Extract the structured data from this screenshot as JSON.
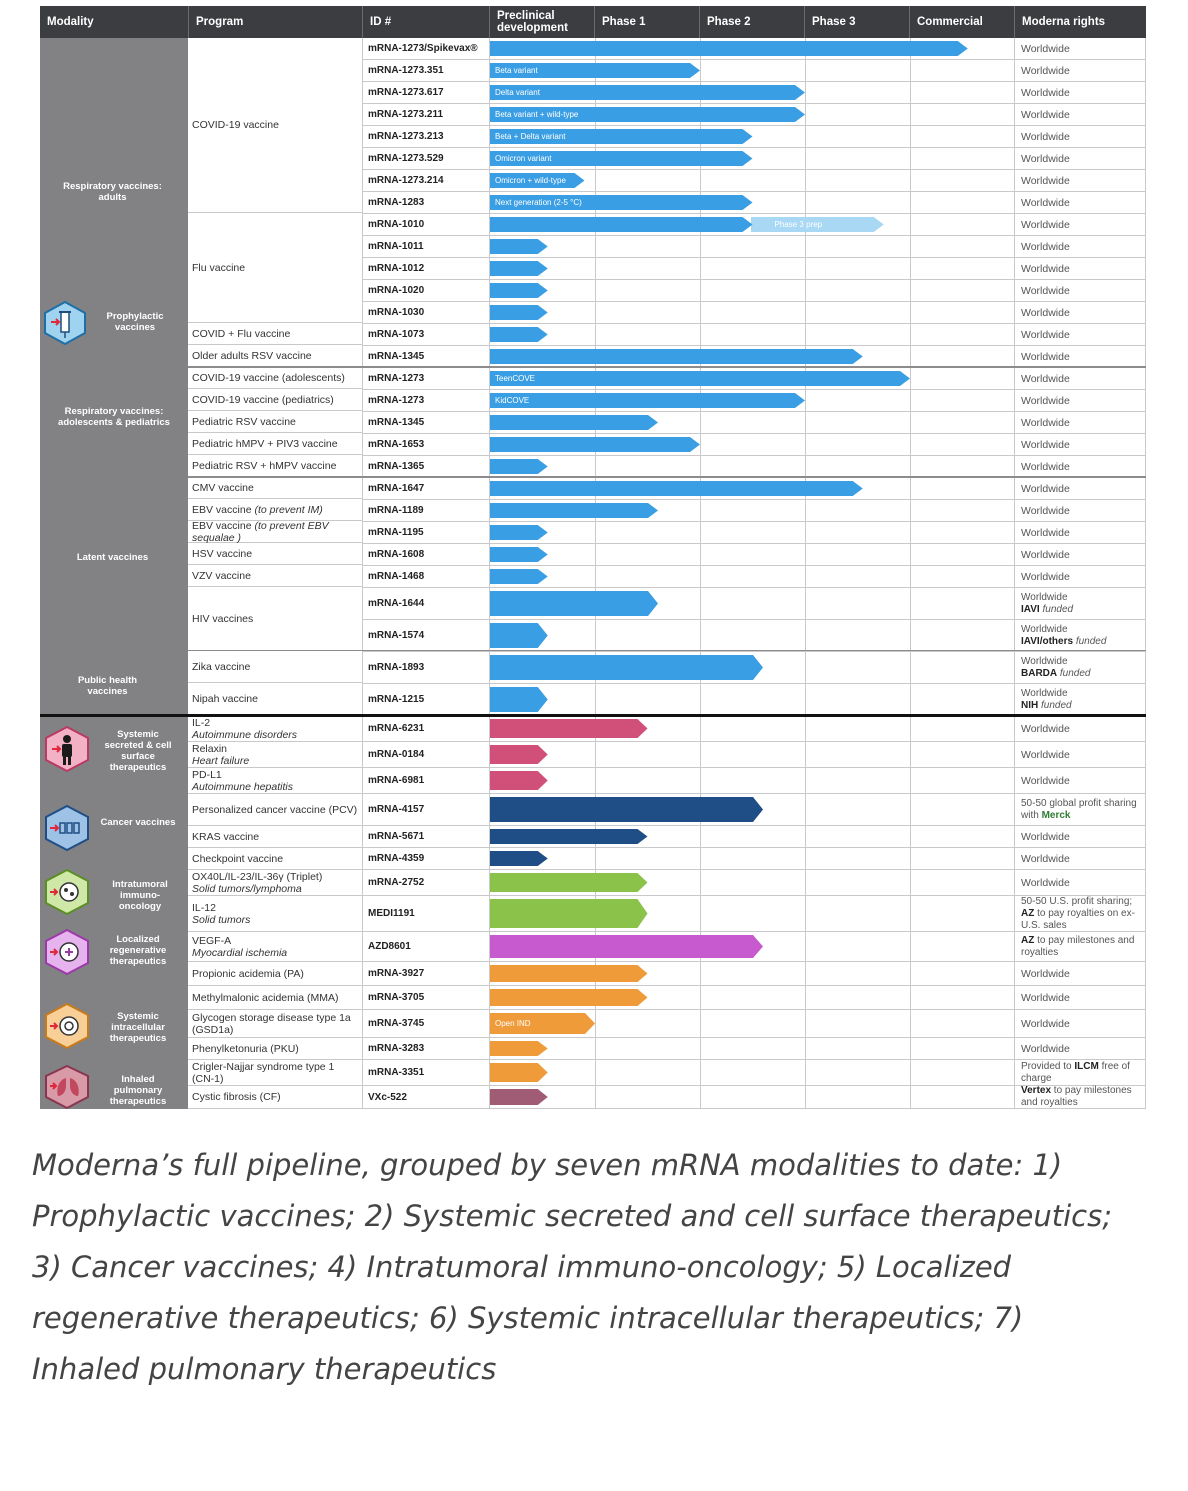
{
  "headers": {
    "modality": "Modality",
    "program": "Program",
    "id": "ID #",
    "preclinical": "Preclinical development",
    "phase1": "Phase 1",
    "phase2": "Phase 2",
    "phase3": "Phase 3",
    "commercial": "Commercial",
    "rights": "Moderna rights"
  },
  "modalities": {
    "resp_adults": "Respiratory vaccines: adults",
    "prophylactic": "Prophylactic vaccines",
    "resp_peds": "Respiratory vaccines: adolescents & pediatrics",
    "latent": "Latent vaccines",
    "public_health": "Public health vaccines",
    "systemic_secreted": "Systemic secreted & cell surface therapeutics",
    "cancer": "Cancer vaccines",
    "intratumoral": "Intratumoral immuno-oncology",
    "localized": "Localized regenerative therapeutics",
    "intracellular": "Systemic intracellular therapeutics",
    "inhaled": "Inhaled pulmonary therapeutics"
  },
  "programs": {
    "covid": "COVID-19 vaccine",
    "flu": "Flu vaccine",
    "covid_flu": "COVID + Flu vaccine",
    "rsv_older": "Older adults RSV vaccine",
    "covid_adol": "COVID-19 vaccine (adolescents)",
    "covid_peds": "COVID-19 vaccine (pediatrics)",
    "rsv_peds": "Pediatric RSV vaccine",
    "hmpv": "Pediatric hMPV + PIV3 vaccine",
    "rsv_hmpv": "Pediatric RSV + hMPV vaccine",
    "cmv": "CMV vaccine",
    "ebv_im_a": "EBV vaccine ",
    "ebv_im_b": "(to prevent IM)",
    "ebv_seq_a": "EBV vaccine ",
    "ebv_seq_b": "(to prevent EBV sequalae )",
    "hsv": "HSV vaccine",
    "vzv": "VZV vaccine",
    "hiv": "HIV vaccines",
    "zika": "Zika vaccine",
    "nipah": "Nipah vaccine",
    "il2": "IL-2",
    "il2_sub": "Autoimmune disorders",
    "relaxin": "Relaxin",
    "relaxin_sub": "Heart failure",
    "pdl1": "PD-L1",
    "pdl1_sub": "Autoimmune hepatitis",
    "pcv": "Personalized cancer vaccine (PCV)",
    "kras": "KRAS vaccine",
    "checkpoint": "Checkpoint vaccine",
    "triplet": "OX40L/IL-23/IL-36γ (Triplet)",
    "triplet_sub": "Solid tumors/lymphoma",
    "il12": "IL-12",
    "il12_sub": "Solid tumors",
    "vegf": "VEGF-A",
    "vegf_sub": "Myocardial ischemia",
    "pa": "Propionic acidemia (PA)",
    "mma": "Methylmalonic acidemia (MMA)",
    "gsd": "Glycogen storage disease type 1a (GSD1a)",
    "pku": "Phenylketonuria (PKU)",
    "cn1": "Crigler-Najjar syndrome type 1 (CN-1)",
    "cf": "Cystic fibrosis (CF)"
  },
  "rights": {
    "worldwide": "Worldwide",
    "iavi": "IAVI",
    "iavi_others": "IAVI/others",
    "funded": " funded",
    "barda": "BARDA",
    "nih": "NIH",
    "merck_pre": "50-50 global profit sharing with ",
    "merck": "Merck",
    "il12_a": "50-50 U.S. profit sharing; ",
    "az": "AZ",
    "il12_b": " to pay royalties on ex-U.S. sales",
    "vegf_b": " to pay milestones and royalties",
    "cn1_pre": "Provided to ",
    "ilcm": "ILCM",
    "cn1_post": " free of charge",
    "vertex": "Vertex",
    "cf_post": " to pay milestones and royalties"
  },
  "rows": [
    {
      "id": "mRNA-1273/Spikevax®",
      "stage": 4.55,
      "label": "",
      "color": "#3a9ee4",
      "rights": "worldwide"
    },
    {
      "id": "mRNA-1273.351",
      "stage": 2.0,
      "label": "Beta variant",
      "color": "#3a9ee4",
      "rights": "worldwide"
    },
    {
      "id": "mRNA-1273.617",
      "stage": 3.0,
      "label": "Delta variant",
      "color": "#3a9ee4",
      "rights": "worldwide"
    },
    {
      "id": "mRNA-1273.211",
      "stage": 3.0,
      "label": "Beta variant + wild-type",
      "color": "#3a9ee4",
      "rights": "worldwide"
    },
    {
      "id": "mRNA-1273.213",
      "stage": 2.5,
      "label": "Beta + Delta variant",
      "color": "#3a9ee4",
      "rights": "worldwide"
    },
    {
      "id": "mRNA-1273.529",
      "stage": 2.5,
      "label": "Omicron variant",
      "color": "#3a9ee4",
      "rights": "worldwide"
    },
    {
      "id": "mRNA-1273.214",
      "stage": 0.9,
      "label": "Omicron + wild-type",
      "color": "#3a9ee4",
      "rights": "worldwide"
    },
    {
      "id": "mRNA-1283",
      "stage": 2.5,
      "label": "Next generation (2-5 °C)",
      "color": "#3a9ee4",
      "rights": "worldwide"
    },
    {
      "id": "mRNA-1010",
      "stage": 2.5,
      "label": "",
      "color": "#3a9ee4",
      "ghost": 3.75,
      "ghost_label": "Phase 3 prep",
      "rights": "worldwide"
    },
    {
      "id": "mRNA-1011",
      "stage": 0.55,
      "label": "",
      "color": "#3a9ee4",
      "rights": "worldwide"
    },
    {
      "id": "mRNA-1012",
      "stage": 0.55,
      "label": "",
      "color": "#3a9ee4",
      "rights": "worldwide"
    },
    {
      "id": "mRNA-1020",
      "stage": 0.55,
      "label": "",
      "color": "#3a9ee4",
      "rights": "worldwide"
    },
    {
      "id": "mRNA-1030",
      "stage": 0.55,
      "label": "",
      "color": "#3a9ee4",
      "rights": "worldwide"
    },
    {
      "id": "mRNA-1073",
      "stage": 0.55,
      "label": "",
      "color": "#3a9ee4",
      "rights": "worldwide"
    },
    {
      "id": "mRNA-1345",
      "stage": 3.55,
      "label": "",
      "color": "#3a9ee4",
      "rights": "worldwide"
    },
    {
      "id": "mRNA-1273",
      "stage": 4.0,
      "label": "TeenCOVE",
      "color": "#3a9ee4",
      "rights": "worldwide"
    },
    {
      "id": "mRNA-1273",
      "stage": 3.0,
      "label": "KidCOVE",
      "color": "#3a9ee4",
      "rights": "worldwide"
    },
    {
      "id": "mRNA-1345",
      "stage": 1.6,
      "label": "",
      "color": "#3a9ee4",
      "rights": "worldwide"
    },
    {
      "id": "mRNA-1653",
      "stage": 2.0,
      "label": "",
      "color": "#3a9ee4",
      "rights": "worldwide"
    },
    {
      "id": "mRNA-1365",
      "stage": 0.55,
      "label": "",
      "color": "#3a9ee4",
      "rights": "worldwide"
    },
    {
      "id": "mRNA-1647",
      "stage": 3.55,
      "label": "",
      "color": "#3a9ee4",
      "rights": "worldwide"
    },
    {
      "id": "mRNA-1189",
      "stage": 1.6,
      "label": "",
      "color": "#3a9ee4",
      "rights": "worldwide"
    },
    {
      "id": "mRNA-1195",
      "stage": 0.55,
      "label": "",
      "color": "#3a9ee4",
      "rights": "worldwide"
    },
    {
      "id": "mRNA-1608",
      "stage": 0.55,
      "label": "",
      "color": "#3a9ee4",
      "rights": "worldwide"
    },
    {
      "id": "mRNA-1468",
      "stage": 0.55,
      "label": "",
      "color": "#3a9ee4",
      "rights": "worldwide"
    },
    {
      "id": "mRNA-1644",
      "stage": 1.6,
      "label": "",
      "color": "#3a9ee4",
      "rights": "iavi"
    },
    {
      "id": "mRNA-1574",
      "stage": 0.55,
      "label": "",
      "color": "#3a9ee4",
      "rights": "iavi_others"
    },
    {
      "id": "mRNA-1893",
      "stage": 2.6,
      "label": "",
      "color": "#3a9ee4",
      "rights": "barda"
    },
    {
      "id": "mRNA-1215",
      "stage": 0.55,
      "label": "",
      "color": "#3a9ee4",
      "rights": "nih"
    },
    {
      "id": "mRNA-6231",
      "stage": 1.5,
      "label": "",
      "color": "#d0507a",
      "rights": "worldwide"
    },
    {
      "id": "mRNA-0184",
      "stage": 0.55,
      "label": "",
      "color": "#d0507a",
      "rights": "worldwide"
    },
    {
      "id": "mRNA-6981",
      "stage": 0.55,
      "label": "",
      "color": "#d0507a",
      "rights": "worldwide"
    },
    {
      "id": "mRNA-4157",
      "stage": 2.6,
      "label": "",
      "color": "#1f4e86",
      "rights": "merck"
    },
    {
      "id": "mRNA-5671",
      "stage": 1.5,
      "label": "",
      "color": "#1f4e86",
      "rights": "worldwide"
    },
    {
      "id": "mRNA-4359",
      "stage": 0.55,
      "label": "",
      "color": "#1f4e86",
      "rights": "worldwide"
    },
    {
      "id": "mRNA-2752",
      "stage": 1.5,
      "label": "",
      "color": "#8bc34a",
      "rights": "worldwide"
    },
    {
      "id": "MEDI1191",
      "stage": 1.5,
      "label": "",
      "color": "#8bc34a",
      "rights": "il12"
    },
    {
      "id": "AZD8601",
      "stage": 2.6,
      "label": "",
      "color": "#c85ad0",
      "rights": "vegf"
    },
    {
      "id": "mRNA-3927",
      "stage": 1.5,
      "label": "",
      "color": "#ef9b3a",
      "rights": "worldwide"
    },
    {
      "id": "mRNA-3705",
      "stage": 1.5,
      "label": "",
      "color": "#ef9b3a",
      "rights": "worldwide"
    },
    {
      "id": "mRNA-3745",
      "stage": 1.0,
      "label": "Open IND",
      "color": "#ef9b3a",
      "rights": "worldwide"
    },
    {
      "id": "mRNA-3283",
      "stage": 0.55,
      "label": "",
      "color": "#ef9b3a",
      "rights": "worldwide"
    },
    {
      "id": "mRNA-3351",
      "stage": 0.55,
      "label": "",
      "color": "#ef9b3a",
      "rights": "cn1"
    },
    {
      "id": "VXc-522",
      "stage": 0.55,
      "label": "",
      "color": "#a05c74",
      "rights": "cf"
    }
  ],
  "caption": "Moderna’s full pipeline, grouped by seven mRNA modalities to date: 1) Prophylactic vaccines; 2) Systemic secreted and cell surface therapeutics; 3) Cancer vaccines; 4) Intratumoral immuno-oncology; 5) Localized regenerative therapeutics; 6) Systemic intracellular therapeutics; 7) Inhaled pulmonary therapeutics"
}
